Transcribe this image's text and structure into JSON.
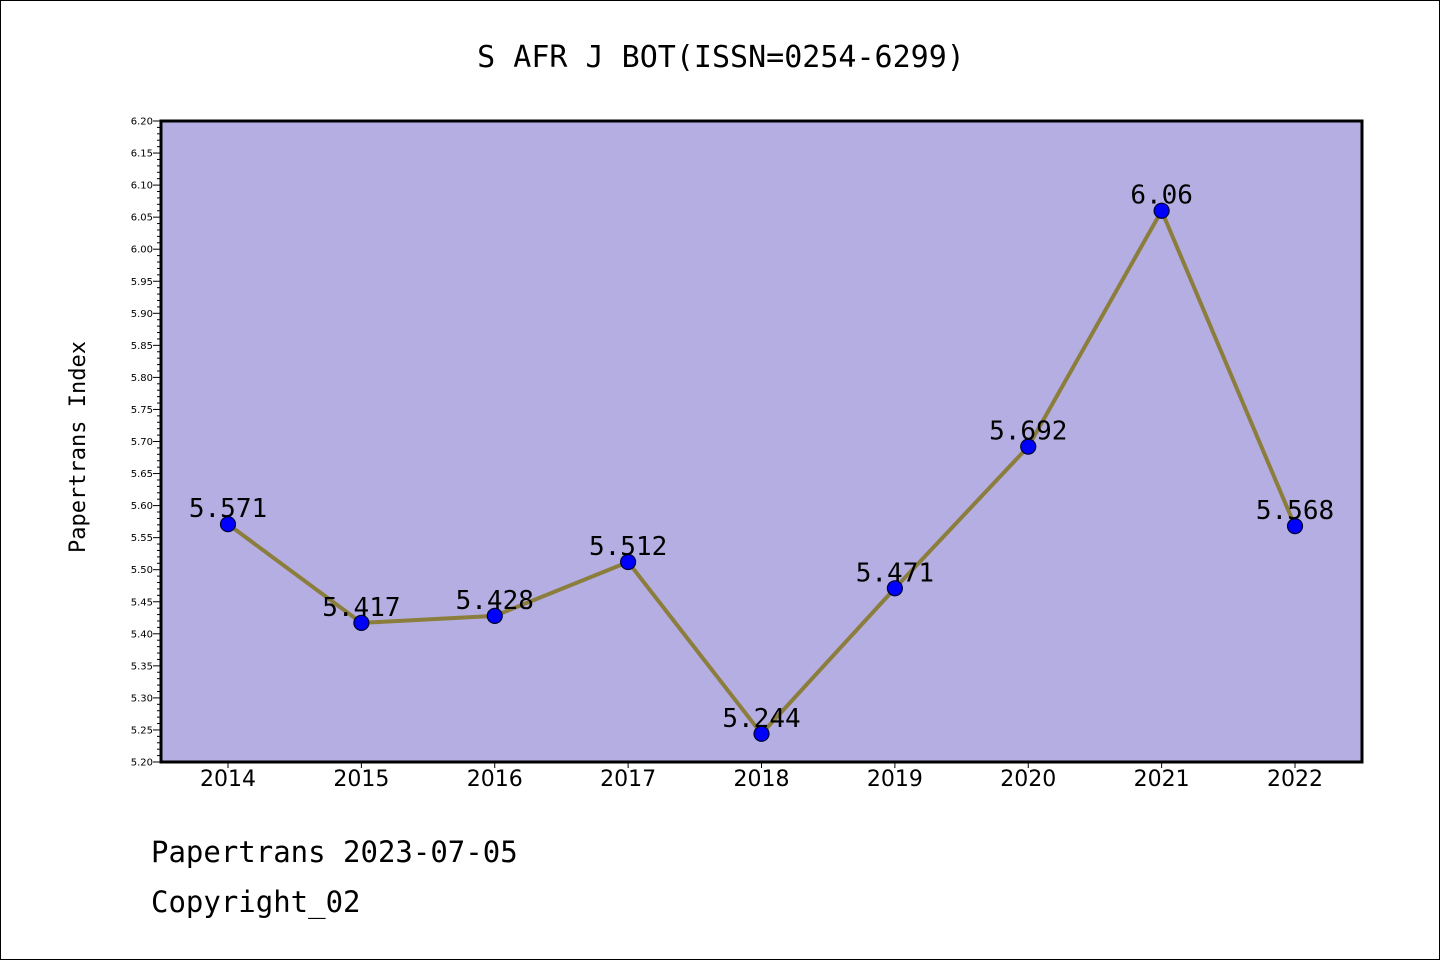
{
  "chart_data": {
    "type": "line",
    "title": "S AFR J BOT(ISSN=0254-6299)",
    "xlabel": "",
    "ylabel": "Papertrans Index",
    "categories": [
      "2014",
      "2015",
      "2016",
      "2017",
      "2018",
      "2019",
      "2020",
      "2021",
      "2022"
    ],
    "series": [
      {
        "values": [
          5.571,
          5.417,
          5.428,
          5.512,
          5.244,
          5.471,
          5.692,
          6.06,
          5.568
        ],
        "labels": [
          "5.571",
          "5.417",
          "5.428",
          "5.512",
          "5.244",
          "5.471",
          "5.692",
          "6.06",
          "5.568"
        ]
      }
    ],
    "ylim": [
      5.2,
      6.2
    ],
    "yticks": [
      "5.20",
      "5.25",
      "5.30",
      "5.35",
      "5.40",
      "5.45",
      "5.50",
      "5.55",
      "5.60",
      "5.65",
      "5.70",
      "5.75",
      "5.80",
      "5.85",
      "5.90",
      "5.95",
      "6.00",
      "6.05",
      "6.10",
      "6.15",
      "6.20"
    ],
    "grid": false,
    "legend": "none",
    "colors": {
      "plot_background": "#b5aee2",
      "line": "#8b7d3c",
      "marker": "#0000ff",
      "marker_edge": "#000033",
      "axes": "#000000"
    }
  },
  "footer": {
    "line1": "Papertrans 2023-07-05",
    "line2": "Copyright_02"
  }
}
